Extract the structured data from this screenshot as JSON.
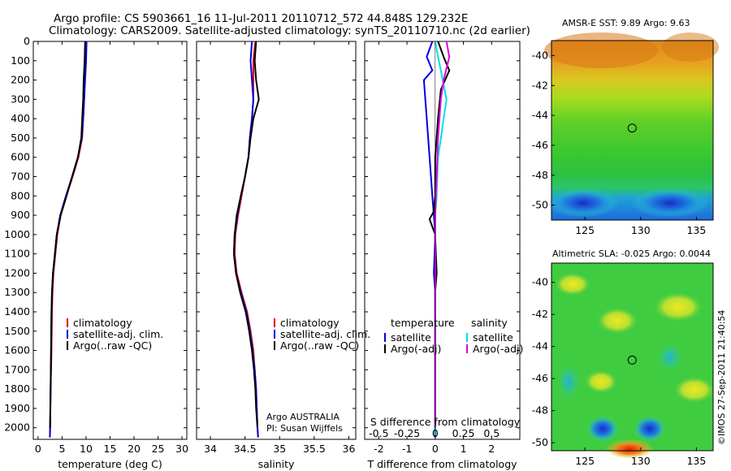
{
  "header": {
    "line1": "Argo profile: CS 5903661_16 11-Jul-2011 20110712_572 44.848S 129.232E",
    "line2": "Climatology: CARS2009. Satellite-adjusted climatology: synTS_20110710.nc (2d earlier)"
  },
  "footer": {
    "stamp": "©IMOS 27-Sep-2011 21:40:54"
  },
  "colors": {
    "climatology": "#e00000",
    "satellite": "#0000e0",
    "argo": "#000000",
    "sal_satellite": "#00e0e0",
    "sal_argo": "#e000e0"
  },
  "chart_data": [
    {
      "type": "line",
      "id": "temperature",
      "xlabel": "temperature (deg C)",
      "xlim": [
        -1,
        31
      ],
      "ylim": [
        2060,
        0
      ],
      "xticks": [
        0,
        5,
        10,
        15,
        20,
        25,
        30
      ],
      "yticks": [
        0,
        100,
        200,
        300,
        400,
        500,
        600,
        700,
        800,
        900,
        1000,
        1100,
        1200,
        1300,
        1400,
        1500,
        1600,
        1700,
        1800,
        1900,
        2000
      ],
      "legend": [
        "climatology",
        "satellite-adj. clim.",
        "Argo(..raw -QC)"
      ],
      "series": [
        {
          "name": "climatology",
          "color": "red",
          "x": [
            10,
            9.9,
            9.7,
            9.6,
            9.4,
            9.2,
            8.4,
            7.2,
            5.9,
            4.7,
            4.0,
            3.6,
            3.2,
            3.0,
            2.9,
            2.85,
            2.8,
            2.7,
            2.6,
            2.55,
            2.5,
            2.45
          ],
          "y": [
            0,
            100,
            200,
            300,
            400,
            500,
            600,
            700,
            800,
            900,
            1000,
            1100,
            1200,
            1300,
            1400,
            1500,
            1600,
            1700,
            1800,
            1900,
            2000,
            2050
          ]
        },
        {
          "name": "satellite-adj. clim.",
          "color": "blue",
          "x": [
            10.1,
            10,
            9.8,
            9.6,
            9.4,
            9.1,
            8.3,
            7.1,
            5.8,
            4.6,
            3.9,
            3.5,
            3.1,
            2.9,
            2.8,
            2.75,
            2.7,
            2.65,
            2.6,
            2.55,
            2.5,
            2.45
          ],
          "y": [
            0,
            100,
            200,
            300,
            400,
            500,
            600,
            700,
            800,
            900,
            1000,
            1100,
            1200,
            1300,
            1400,
            1500,
            1600,
            1700,
            1800,
            1900,
            2000,
            2050
          ]
        },
        {
          "name": "Argo(..raw -QC)",
          "color": "black",
          "x": [
            9.8,
            9.7,
            9.5,
            9.4,
            9.2,
            9.0,
            8.3,
            7.1,
            5.9,
            4.7,
            3.9,
            3.5,
            3.1,
            2.9,
            2.8,
            2.75,
            2.7,
            2.65,
            2.6,
            2.55,
            2.5
          ],
          "y": [
            0,
            100,
            200,
            300,
            400,
            500,
            600,
            700,
            800,
            900,
            1000,
            1100,
            1200,
            1300,
            1400,
            1500,
            1600,
            1700,
            1800,
            1900,
            2000
          ]
        }
      ]
    },
    {
      "type": "line",
      "id": "salinity",
      "xlabel": "salinity",
      "xlim": [
        33.8,
        36.1
      ],
      "ylim": [
        2060,
        0
      ],
      "xticks": [
        34,
        34.5,
        35,
        35.5,
        36
      ],
      "legend": [
        "climatology",
        "satellite-adj. clim.",
        "Argo(..raw -QC)"
      ],
      "annotation": [
        "Argo AUSTRALIA",
        "PI: Susan Wijffels"
      ],
      "series": [
        {
          "name": "climatology",
          "color": "red",
          "x": [
            34.65,
            34.62,
            34.62,
            34.62,
            34.6,
            34.57,
            34.55,
            34.5,
            34.45,
            34.4,
            34.36,
            34.35,
            34.38,
            34.45,
            34.53,
            34.58,
            34.62,
            34.64,
            34.66,
            34.67,
            34.68,
            34.69
          ],
          "y": [
            0,
            100,
            200,
            300,
            400,
            500,
            600,
            700,
            800,
            900,
            1000,
            1100,
            1200,
            1300,
            1400,
            1500,
            1600,
            1700,
            1800,
            1900,
            2000,
            2050
          ]
        },
        {
          "name": "satellite-adj. clim.",
          "color": "blue",
          "x": [
            34.6,
            34.58,
            34.6,
            34.62,
            34.6,
            34.57,
            34.55,
            34.5,
            34.44,
            34.39,
            34.35,
            34.34,
            34.37,
            34.44,
            34.52,
            34.57,
            34.61,
            34.64,
            34.66,
            34.67,
            34.68,
            34.69
          ],
          "y": [
            0,
            100,
            200,
            300,
            400,
            500,
            600,
            700,
            800,
            900,
            1000,
            1100,
            1200,
            1300,
            1400,
            1500,
            1600,
            1700,
            1800,
            1900,
            2000,
            2050
          ]
        },
        {
          "name": "Argo(..raw -QC)",
          "color": "black",
          "x": [
            34.66,
            34.64,
            34.66,
            34.7,
            34.62,
            34.58,
            34.55,
            34.5,
            34.44,
            34.38,
            34.35,
            34.34,
            34.37,
            34.43,
            34.51,
            34.56,
            34.6,
            34.63,
            34.65,
            34.66,
            34.68
          ],
          "y": [
            0,
            100,
            200,
            300,
            400,
            500,
            600,
            700,
            800,
            900,
            1000,
            1100,
            1200,
            1300,
            1400,
            1500,
            1600,
            1700,
            1800,
            1900,
            2000
          ]
        }
      ]
    },
    {
      "type": "line",
      "id": "difference",
      "xlabel": "T difference from climatology",
      "xlabel_top": "S difference from climatology",
      "xlim": [
        -2.5,
        3.0
      ],
      "ylim": [
        2060,
        0
      ],
      "xticks": [
        -2,
        -1,
        0,
        1,
        2
      ],
      "xticks_top": [
        "-0.5",
        "-0.25",
        "0",
        "0.25",
        "0.5"
      ],
      "xticks_top_values": [
        -2,
        -1,
        0,
        1,
        2
      ],
      "legend_left_title": "temperature",
      "legend_left": [
        "satellite",
        "Argo(-adj)"
      ],
      "legend_right_title": "salinity",
      "legend_right": [
        "satellite",
        "Argo(-adj)"
      ],
      "series": [
        {
          "name": "temperature satellite",
          "color": "blue",
          "x": [
            -0.1,
            -0.3,
            -0.1,
            -0.4,
            -0.3,
            -0.2,
            -0.1,
            -0.05,
            0,
            -0.05,
            0,
            0,
            0,
            0,
            0,
            0,
            0,
            0,
            0,
            0,
            0
          ],
          "y": [
            0,
            80,
            150,
            200,
            400,
            600,
            800,
            900,
            1000,
            1200,
            1300,
            1400,
            1500,
            1600,
            1700,
            1800,
            1900,
            2000,
            2030,
            2040,
            2050
          ]
        },
        {
          "name": "temperature Argo(-adj)",
          "color": "black",
          "x": [
            0.1,
            0.3,
            0.5,
            0.2,
            0.1,
            0,
            0,
            -0.05,
            -0.2,
            0,
            0.05,
            0,
            0,
            0,
            0,
            0,
            0,
            0,
            0,
            0
          ],
          "y": [
            0,
            80,
            150,
            250,
            400,
            600,
            800,
            880,
            920,
            1000,
            1200,
            1300,
            1400,
            1500,
            1600,
            1700,
            1800,
            1900,
            2000,
            2040
          ]
        },
        {
          "name": "salinity satellite",
          "color": "cyan",
          "x": [
            0,
            0.1,
            0.2,
            0.4,
            0.3,
            0.2,
            0.1,
            0.05,
            0,
            0,
            0,
            0,
            0,
            0,
            0,
            0,
            0,
            0
          ],
          "y": [
            0,
            80,
            150,
            300,
            400,
            500,
            600,
            800,
            900,
            1000,
            1200,
            1400,
            1600,
            1700,
            1800,
            1900,
            2000,
            2040
          ]
        },
        {
          "name": "salinity Argo(-adj)",
          "color": "magenta",
          "x": [
            0.4,
            0.5,
            0.3,
            0.2,
            0.1,
            0.05,
            0,
            0,
            0,
            0,
            0,
            0,
            0,
            0,
            0
          ],
          "y": [
            0,
            80,
            200,
            300,
            500,
            700,
            900,
            1100,
            1300,
            1500,
            1600,
            1700,
            1800,
            1900,
            2000
          ]
        }
      ]
    },
    {
      "type": "heatmap",
      "id": "sst",
      "title": "AMSR-E SST: 9.89 Argo: 9.63",
      "xlim": [
        122,
        136.5
      ],
      "ylim": [
        -51,
        -39
      ],
      "xticks": [
        125,
        130,
        135
      ],
      "yticks": [
        -40,
        -42,
        -44,
        -46,
        -48,
        -50
      ],
      "marker": {
        "lon": 129.232,
        "lat": -44.848
      }
    },
    {
      "type": "heatmap",
      "id": "sla",
      "title": "Altimetric SLA: -0.025 Argo: 0.0044",
      "xlim": [
        122,
        136.5
      ],
      "ylim": [
        -50.5,
        -38.8
      ],
      "xticks": [
        125,
        130,
        135
      ],
      "yticks": [
        -40,
        -42,
        -44,
        -46,
        -48,
        -50
      ],
      "marker": {
        "lon": 129.232,
        "lat": -44.848
      }
    }
  ]
}
